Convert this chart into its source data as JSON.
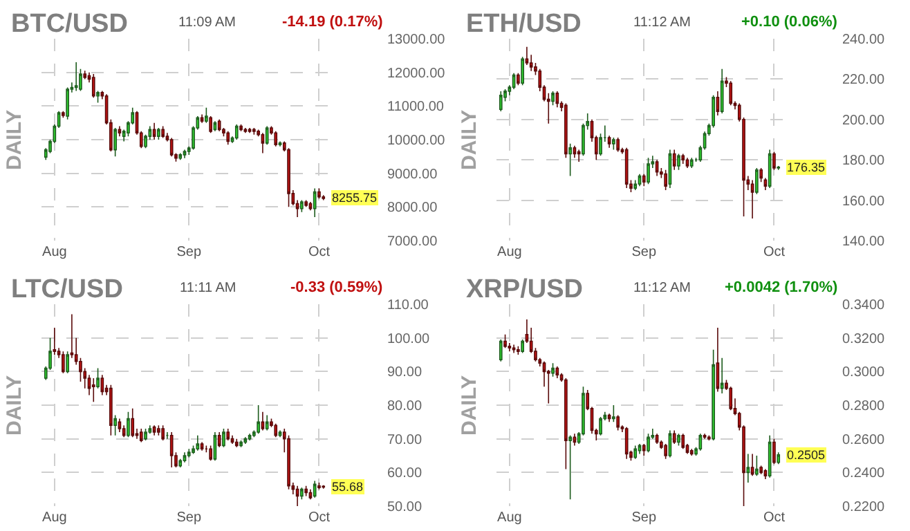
{
  "chart_data": [
    {
      "type": "candlestick",
      "title": "BTC/USD",
      "ylabel": "DAILY",
      "annotations": [
        "11:09 AM",
        "-14.19 (0.17%)",
        {
          "text": "8255.75",
          "y": 8255.75
        }
      ],
      "x": [
        "--07-30",
        "--07-31",
        "--08-01",
        "--08-02",
        "--08-03",
        "--08-04",
        "--08-05",
        "--08-06",
        "--08-07",
        "--08-08",
        "--08-09",
        "--08-10",
        "--08-11",
        "--08-12",
        "--08-13",
        "--08-14",
        "--08-15",
        "--08-16",
        "--08-17",
        "--08-18",
        "--08-19",
        "--08-20",
        "--08-21",
        "--08-22",
        "--08-23",
        "--08-24",
        "--08-25",
        "--08-26",
        "--08-27",
        "--08-28",
        "--08-29",
        "--08-30",
        "--08-31",
        "--09-01",
        "--09-02",
        "--09-03",
        "--09-04",
        "--09-05",
        "--09-06",
        "--09-07",
        "--09-08",
        "--09-09",
        "--09-10",
        "--09-11",
        "--09-12",
        "--09-13",
        "--09-14",
        "--09-15",
        "--09-16",
        "--09-17",
        "--09-18",
        "--09-19",
        "--09-20",
        "--09-21",
        "--09-22",
        "--09-23",
        "--09-24",
        "--09-25",
        "--09-26",
        "--09-27",
        "--09-28",
        "--09-29",
        "--09-30",
        "--10-01",
        "--10-02"
      ],
      "ohlc": [
        [
          9480,
          9750,
          9400,
          9700
        ],
        [
          9650,
          10000,
          9600,
          9950
        ],
        [
          9950,
          10450,
          9900,
          10400
        ],
        [
          10400,
          10850,
          10350,
          10800
        ],
        [
          10800,
          10850,
          10650,
          10720
        ],
        [
          10700,
          11550,
          10600,
          11500
        ],
        [
          11500,
          11700,
          11400,
          11550
        ],
        [
          11550,
          12300,
          11450,
          11600
        ],
        [
          11500,
          12100,
          11450,
          11950
        ],
        [
          11950,
          12050,
          11800,
          11850
        ],
        [
          11900,
          12000,
          11700,
          11800
        ],
        [
          11850,
          11950,
          11250,
          11300
        ],
        [
          11300,
          11450,
          11100,
          11400
        ],
        [
          11400,
          11450,
          11200,
          11300
        ],
        [
          11300,
          11350,
          10450,
          10500
        ],
        [
          10500,
          10600,
          9650,
          9700
        ],
        [
          9700,
          10350,
          9500,
          10300
        ],
        [
          10300,
          10400,
          10100,
          10200
        ],
        [
          10100,
          10300,
          9950,
          10250
        ],
        [
          10200,
          10550,
          10100,
          10500
        ],
        [
          10500,
          10950,
          10450,
          10800
        ],
        [
          10800,
          10850,
          10150,
          10200
        ],
        [
          10200,
          10250,
          9750,
          9800
        ],
        [
          9800,
          10150,
          9750,
          10100
        ],
        [
          10100,
          10400,
          10000,
          10300
        ],
        [
          10300,
          10500,
          10000,
          10100
        ],
        [
          10100,
          10350,
          10000,
          10300
        ],
        [
          10300,
          10400,
          10050,
          10100
        ],
        [
          10100,
          10200,
          9950,
          10000
        ],
        [
          10000,
          10050,
          9500,
          9550
        ],
        [
          9550,
          9600,
          9350,
          9450
        ],
        [
          9450,
          9600,
          9400,
          9550
        ],
        [
          9550,
          9700,
          9450,
          9650
        ],
        [
          9650,
          9800,
          9550,
          9750
        ],
        [
          9750,
          10400,
          9700,
          10350
        ],
        [
          10350,
          10700,
          10300,
          10650
        ],
        [
          10650,
          10750,
          10500,
          10550
        ],
        [
          10550,
          10950,
          10500,
          10700
        ],
        [
          10650,
          10700,
          10200,
          10250
        ],
        [
          10300,
          10550,
          10250,
          10500
        ],
        [
          10550,
          10600,
          10250,
          10300
        ],
        [
          10300,
          10350,
          10100,
          10200
        ],
        [
          10200,
          10250,
          9850,
          9950
        ],
        [
          9950,
          10100,
          9900,
          10050
        ],
        [
          10050,
          10450,
          10000,
          10400
        ],
        [
          10400,
          10450,
          10250,
          10300
        ],
        [
          10300,
          10350,
          10200,
          10250
        ],
        [
          10300,
          10350,
          10200,
          10250
        ],
        [
          10300,
          10350,
          10150,
          10250
        ],
        [
          10250,
          10300,
          10100,
          10150
        ],
        [
          10150,
          10200,
          9600,
          9900
        ],
        [
          9900,
          10400,
          9850,
          10350
        ],
        [
          10350,
          10400,
          10150,
          10200
        ],
        [
          10200,
          10250,
          9800,
          9850
        ],
        [
          9850,
          9950,
          9800,
          9900
        ],
        [
          9900,
          9950,
          9650,
          9700
        ],
        [
          9700,
          9750,
          8000,
          8400
        ],
        [
          8400,
          8500,
          8050,
          8100
        ],
        [
          8100,
          8200,
          7700,
          7950
        ],
        [
          7950,
          8200,
          7850,
          8150
        ],
        [
          8150,
          8200,
          8000,
          8050
        ],
        [
          8100,
          8150,
          7900,
          7950
        ],
        [
          7950,
          8550,
          7700,
          8450
        ],
        [
          8450,
          8550,
          8250,
          8300
        ],
        [
          8300,
          8350,
          8200,
          8255.75
        ]
      ],
      "xlim": [
        "--07-29",
        "--10-03"
      ],
      "xticks": [
        {
          "value": "--08-01",
          "label": "Aug"
        },
        {
          "value": "--09-01",
          "label": "Sep"
        },
        {
          "value": "--10-01",
          "label": "Oct"
        }
      ],
      "ylim": [
        7000,
        13000
      ],
      "yticks": [
        {
          "value": 7000,
          "label": "7000.00"
        },
        {
          "value": 8000,
          "label": "8000.00"
        },
        {
          "value": 9000,
          "label": "9000.00"
        },
        {
          "value": 10000,
          "label": "10000.00"
        },
        {
          "value": 11000,
          "label": "11000.00"
        },
        {
          "value": 12000,
          "label": "12000.00"
        },
        {
          "value": 13000,
          "label": "13000.00"
        }
      ],
      "grid": true
    },
    {
      "type": "candlestick",
      "title": "ETH/USD",
      "ylabel": "DAILY",
      "annotations": [
        "11:12 AM",
        "+0.10 (0.06%)",
        {
          "text": "176.35",
          "y": 176.35
        }
      ],
      "x": [
        "--07-30",
        "--07-31",
        "--08-01",
        "--08-02",
        "--08-03",
        "--08-04",
        "--08-05",
        "--08-06",
        "--08-07",
        "--08-08",
        "--08-09",
        "--08-10",
        "--08-11",
        "--08-12",
        "--08-13",
        "--08-14",
        "--08-15",
        "--08-16",
        "--08-17",
        "--08-18",
        "--08-19",
        "--08-20",
        "--08-21",
        "--08-22",
        "--08-23",
        "--08-24",
        "--08-25",
        "--08-26",
        "--08-27",
        "--08-28",
        "--08-29",
        "--08-30",
        "--08-31",
        "--09-01",
        "--09-02",
        "--09-03",
        "--09-04",
        "--09-05",
        "--09-06",
        "--09-07",
        "--09-08",
        "--09-09",
        "--09-10",
        "--09-11",
        "--09-12",
        "--09-13",
        "--09-14",
        "--09-15",
        "--09-16",
        "--09-17",
        "--09-18",
        "--09-19",
        "--09-20",
        "--09-21",
        "--09-22",
        "--09-23",
        "--09-24",
        "--09-25",
        "--09-26",
        "--09-27",
        "--09-28",
        "--09-29",
        "--09-30",
        "--10-01",
        "--10-02"
      ],
      "ohlc": [
        [
          205,
          214,
          204,
          212
        ],
        [
          211,
          215,
          209,
          214
        ],
        [
          214,
          217,
          212,
          216
        ],
        [
          216,
          223,
          215,
          222
        ],
        [
          222,
          223,
          217,
          218
        ],
        [
          218,
          231,
          217,
          230
        ],
        [
          230,
          236,
          227,
          228
        ],
        [
          228,
          232,
          224,
          226
        ],
        [
          226,
          228,
          222,
          224
        ],
        [
          224,
          225,
          214,
          216
        ],
        [
          216,
          217,
          209,
          210
        ],
        [
          210,
          213,
          198,
          209
        ],
        [
          209,
          214,
          207,
          213
        ],
        [
          213,
          214,
          206,
          208
        ],
        [
          208,
          209,
          204,
          206
        ],
        [
          207,
          208,
          181,
          183
        ],
        [
          183,
          188,
          172,
          186
        ],
        [
          186,
          187,
          181,
          183
        ],
        [
          184,
          185,
          179,
          183
        ],
        [
          183,
          198,
          182,
          197
        ],
        [
          197,
          203,
          195,
          199
        ],
        [
          199,
          200,
          189,
          191
        ],
        [
          191,
          192,
          180,
          183
        ],
        [
          183,
          193,
          182,
          191
        ],
        [
          191,
          197,
          189,
          191
        ],
        [
          191,
          192,
          186,
          188
        ],
        [
          188,
          191,
          185,
          190
        ],
        [
          190,
          191,
          184,
          185
        ],
        [
          185,
          186,
          183,
          184
        ],
        [
          185,
          186,
          166,
          168
        ],
        [
          168,
          170,
          164,
          166
        ],
        [
          166,
          170,
          165,
          168
        ],
        [
          168,
          173,
          167,
          172
        ],
        [
          172,
          173,
          167,
          169
        ],
        [
          169,
          181,
          168,
          178
        ],
        [
          178,
          182,
          176,
          179
        ],
        [
          179,
          180,
          172,
          174
        ],
        [
          174,
          176,
          171,
          173
        ],
        [
          173,
          175,
          165,
          167
        ],
        [
          168,
          185,
          166,
          183
        ],
        [
          183,
          185,
          175,
          177
        ],
        [
          177,
          183,
          175,
          182
        ],
        [
          182,
          183,
          178,
          180
        ],
        [
          180,
          181,
          176,
          177
        ],
        [
          177,
          181,
          176,
          180
        ],
        [
          180,
          181,
          179,
          180
        ],
        [
          180,
          187,
          179,
          186
        ],
        [
          186,
          194,
          185,
          193
        ],
        [
          193,
          198,
          192,
          197
        ],
        [
          197,
          212,
          196,
          211
        ],
        [
          211,
          214,
          202,
          204
        ],
        [
          204,
          225,
          203,
          219
        ],
        [
          219,
          221,
          216,
          218
        ],
        [
          218,
          219,
          207,
          208
        ],
        [
          208,
          209,
          205,
          207
        ],
        [
          207,
          208,
          199,
          200
        ],
        [
          200,
          201,
          152,
          170
        ],
        [
          170,
          172,
          165,
          168
        ],
        [
          168,
          170,
          151,
          164
        ],
        [
          164,
          176,
          163,
          175
        ],
        [
          175,
          176,
          169,
          171
        ],
        [
          170,
          171,
          165,
          167
        ],
        [
          167,
          185,
          166,
          183
        ],
        [
          183,
          184,
          175,
          176
        ],
        [
          176,
          177,
          175,
          176.35
        ]
      ],
      "xlim": [
        "--07-29",
        "--10-03"
      ],
      "xticks": [
        {
          "value": "--08-01",
          "label": "Aug"
        },
        {
          "value": "--09-01",
          "label": "Sep"
        },
        {
          "value": "--10-01",
          "label": "Oct"
        }
      ],
      "ylim": [
        140,
        240
      ],
      "yticks": [
        {
          "value": 140,
          "label": "140.00"
        },
        {
          "value": 160,
          "label": "160.00"
        },
        {
          "value": 180,
          "label": "180.00"
        },
        {
          "value": 200,
          "label": "200.00"
        },
        {
          "value": 220,
          "label": "220.00"
        },
        {
          "value": 240,
          "label": "240.00"
        }
      ],
      "grid": true
    },
    {
      "type": "candlestick",
      "title": "LTC/USD",
      "ylabel": "DAILY",
      "annotations": [
        "11:11 AM",
        "-0.33 (0.59%)",
        {
          "text": "55.68",
          "y": 55.68
        }
      ],
      "x": [
        "--07-30",
        "--07-31",
        "--08-01",
        "--08-02",
        "--08-03",
        "--08-04",
        "--08-05",
        "--08-06",
        "--08-07",
        "--08-08",
        "--08-09",
        "--08-10",
        "--08-11",
        "--08-12",
        "--08-13",
        "--08-14",
        "--08-15",
        "--08-16",
        "--08-17",
        "--08-18",
        "--08-19",
        "--08-20",
        "--08-21",
        "--08-22",
        "--08-23",
        "--08-24",
        "--08-25",
        "--08-26",
        "--08-27",
        "--08-28",
        "--08-29",
        "--08-30",
        "--08-31",
        "--09-01",
        "--09-02",
        "--09-03",
        "--09-04",
        "--09-05",
        "--09-06",
        "--09-07",
        "--09-08",
        "--09-09",
        "--09-10",
        "--09-11",
        "--09-12",
        "--09-13",
        "--09-14",
        "--09-15",
        "--09-16",
        "--09-17",
        "--09-18",
        "--09-19",
        "--09-20",
        "--09-21",
        "--09-22",
        "--09-23",
        "--09-24",
        "--09-25",
        "--09-26",
        "--09-27",
        "--09-28",
        "--09-29",
        "--09-30",
        "--10-01",
        "--10-02"
      ],
      "ohlc": [
        [
          88,
          91.5,
          87.5,
          91
        ],
        [
          91,
          100,
          90.5,
          96
        ],
        [
          96.5,
          103,
          95,
          96
        ],
        [
          96,
          97,
          94,
          95
        ],
        [
          95,
          96,
          89.5,
          90
        ],
        [
          90,
          96,
          89.5,
          95
        ],
        [
          95.5,
          107,
          94,
          95
        ],
        [
          95,
          100,
          92,
          93
        ],
        [
          93,
          94,
          87,
          90
        ],
        [
          90,
          91,
          85,
          88
        ],
        [
          88,
          89,
          83,
          85
        ],
        [
          86,
          88,
          81,
          85.5
        ],
        [
          85.5,
          91,
          85,
          88
        ],
        [
          88,
          89,
          83,
          84
        ],
        [
          85,
          86,
          83,
          84
        ],
        [
          85,
          86,
          71,
          74
        ],
        [
          74,
          77,
          71,
          76
        ],
        [
          75,
          76,
          72,
          73
        ],
        [
          73,
          74,
          70.5,
          71
        ],
        [
          71,
          78,
          70.5,
          76
        ],
        [
          76,
          79,
          70.5,
          71
        ],
        [
          71.5,
          73,
          70,
          71
        ],
        [
          72,
          73,
          69,
          69.5
        ],
        [
          70,
          73,
          69.5,
          72
        ],
        [
          72,
          74,
          71.5,
          73
        ],
        [
          73.5,
          74,
          71,
          72
        ],
        [
          73,
          74,
          71,
          72
        ],
        [
          73,
          74,
          69.5,
          70
        ],
        [
          71,
          72,
          70,
          71
        ],
        [
          71,
          72,
          61.5,
          65
        ],
        [
          65,
          66,
          61.5,
          62
        ],
        [
          62,
          64,
          61.5,
          63.5
        ],
        [
          63.5,
          66,
          63,
          65
        ],
        [
          65,
          67,
          64.5,
          66
        ],
        [
          66,
          68,
          65.5,
          67
        ],
        [
          67,
          71,
          66.5,
          68.5
        ],
        [
          68.5,
          69,
          66.5,
          67
        ],
        [
          67,
          68,
          66,
          67
        ],
        [
          67,
          68,
          63.5,
          64
        ],
        [
          64,
          72,
          63.5,
          71
        ],
        [
          71,
          72,
          67.5,
          68
        ],
        [
          68,
          73,
          67.5,
          72
        ],
        [
          72,
          73,
          69.5,
          70
        ],
        [
          70,
          71,
          68.5,
          69
        ],
        [
          69,
          70,
          67.5,
          68
        ],
        [
          68,
          69.5,
          67.5,
          69
        ],
        [
          69,
          70.5,
          68.5,
          70
        ],
        [
          70,
          71.5,
          69.5,
          71
        ],
        [
          71,
          72.5,
          70.5,
          72
        ],
        [
          72,
          80,
          71.5,
          75
        ],
        [
          75,
          78,
          72.5,
          73
        ],
        [
          73,
          77,
          72.5,
          75
        ],
        [
          75,
          76,
          73.5,
          74
        ],
        [
          74,
          74.5,
          70.5,
          71
        ],
        [
          71,
          72.5,
          70.5,
          72
        ],
        [
          72,
          73,
          66,
          70
        ],
        [
          70,
          71,
          55,
          56
        ],
        [
          56,
          57,
          53.5,
          55
        ],
        [
          55,
          56,
          50,
          53
        ],
        [
          53,
          55.5,
          52,
          55
        ],
        [
          55,
          56,
          53,
          54
        ],
        [
          54,
          55,
          52,
          52.5
        ],
        [
          53,
          57.5,
          52.5,
          56.5
        ],
        [
          56,
          57,
          55,
          55.5
        ],
        [
          55.9,
          56.2,
          55.2,
          55.68
        ]
      ],
      "xlim": [
        "--07-29",
        "--10-03"
      ],
      "xticks": [
        {
          "value": "--08-01",
          "label": "Aug"
        },
        {
          "value": "--09-01",
          "label": "Sep"
        },
        {
          "value": "--10-01",
          "label": "Oct"
        }
      ],
      "ylim": [
        50,
        110
      ],
      "yticks": [
        {
          "value": 50,
          "label": "50.00"
        },
        {
          "value": 60,
          "label": "60.00"
        },
        {
          "value": 70,
          "label": "70.00"
        },
        {
          "value": 80,
          "label": "80.00"
        },
        {
          "value": 90,
          "label": "90.00"
        },
        {
          "value": 100,
          "label": "100.00"
        },
        {
          "value": 110,
          "label": "110.00"
        }
      ],
      "grid": true
    },
    {
      "type": "candlestick",
      "title": "XRP/USD",
      "ylabel": "DAILY",
      "annotations": [
        "11:12 AM",
        "+0.0042 (1.70%)",
        {
          "text": "0.2505",
          "y": 0.2505
        }
      ],
      "x": [
        "--07-30",
        "--07-31",
        "--08-01",
        "--08-02",
        "--08-03",
        "--08-04",
        "--08-05",
        "--08-06",
        "--08-07",
        "--08-08",
        "--08-09",
        "--08-10",
        "--08-11",
        "--08-12",
        "--08-13",
        "--08-14",
        "--08-15",
        "--08-16",
        "--08-17",
        "--08-18",
        "--08-19",
        "--08-20",
        "--08-21",
        "--08-22",
        "--08-23",
        "--08-24",
        "--08-25",
        "--08-26",
        "--08-27",
        "--08-28",
        "--08-29",
        "--08-30",
        "--08-31",
        "--09-01",
        "--09-02",
        "--09-03",
        "--09-04",
        "--09-05",
        "--09-06",
        "--09-07",
        "--09-08",
        "--09-09",
        "--09-10",
        "--09-11",
        "--09-12",
        "--09-13",
        "--09-14",
        "--09-15",
        "--09-16",
        "--09-17",
        "--09-18",
        "--09-19",
        "--09-20",
        "--09-21",
        "--09-22",
        "--09-23",
        "--09-24",
        "--09-25",
        "--09-26",
        "--09-27",
        "--09-28",
        "--09-29",
        "--09-30",
        "--10-01",
        "--10-02"
      ],
      "ohlc": [
        [
          0.307,
          0.319,
          0.306,
          0.318
        ],
        [
          0.318,
          0.322,
          0.314,
          0.315
        ],
        [
          0.315,
          0.317,
          0.312,
          0.314
        ],
        [
          0.314,
          0.316,
          0.311,
          0.313
        ],
        [
          0.313,
          0.315,
          0.31,
          0.312
        ],
        [
          0.312,
          0.319,
          0.311,
          0.318
        ],
        [
          0.322,
          0.331,
          0.317,
          0.318
        ],
        [
          0.318,
          0.326,
          0.311,
          0.312
        ],
        [
          0.312,
          0.314,
          0.306,
          0.307
        ],
        [
          0.307,
          0.308,
          0.303,
          0.305
        ],
        [
          0.305,
          0.306,
          0.291,
          0.3
        ],
        [
          0.3,
          0.301,
          0.281,
          0.299
        ],
        [
          0.299,
          0.305,
          0.297,
          0.302
        ],
        [
          0.302,
          0.303,
          0.296,
          0.298
        ],
        [
          0.298,
          0.299,
          0.294,
          0.295
        ],
        [
          0.295,
          0.296,
          0.242,
          0.259
        ],
        [
          0.259,
          0.262,
          0.224,
          0.261
        ],
        [
          0.261,
          0.263,
          0.256,
          0.258
        ],
        [
          0.258,
          0.264,
          0.257,
          0.263
        ],
        [
          0.263,
          0.291,
          0.262,
          0.287
        ],
        [
          0.287,
          0.289,
          0.277,
          0.278
        ],
        [
          0.278,
          0.279,
          0.263,
          0.265
        ],
        [
          0.265,
          0.266,
          0.259,
          0.263
        ],
        [
          0.263,
          0.273,
          0.262,
          0.272
        ],
        [
          0.272,
          0.276,
          0.271,
          0.274
        ],
        [
          0.274,
          0.275,
          0.27,
          0.272
        ],
        [
          0.272,
          0.28,
          0.27,
          0.273
        ],
        [
          0.273,
          0.274,
          0.265,
          0.267
        ],
        [
          0.267,
          0.268,
          0.264,
          0.266
        ],
        [
          0.266,
          0.267,
          0.248,
          0.251
        ],
        [
          0.252,
          0.253,
          0.247,
          0.249
        ],
        [
          0.249,
          0.256,
          0.248,
          0.254
        ],
        [
          0.253,
          0.257,
          0.251,
          0.256
        ],
        [
          0.256,
          0.257,
          0.25,
          0.253
        ],
        [
          0.253,
          0.263,
          0.252,
          0.261
        ],
        [
          0.261,
          0.266,
          0.26,
          0.262
        ],
        [
          0.262,
          0.263,
          0.257,
          0.258
        ],
        [
          0.258,
          0.259,
          0.254,
          0.255
        ],
        [
          0.256,
          0.257,
          0.248,
          0.25
        ],
        [
          0.25,
          0.265,
          0.249,
          0.263
        ],
        [
          0.263,
          0.265,
          0.257,
          0.258
        ],
        [
          0.258,
          0.263,
          0.256,
          0.262
        ],
        [
          0.262,
          0.263,
          0.254,
          0.255
        ],
        [
          0.256,
          0.257,
          0.251,
          0.252
        ],
        [
          0.253,
          0.254,
          0.25,
          0.251
        ],
        [
          0.251,
          0.255,
          0.25,
          0.254
        ],
        [
          0.254,
          0.263,
          0.253,
          0.262
        ],
        [
          0.262,
          0.263,
          0.26,
          0.261
        ],
        [
          0.261,
          0.262,
          0.259,
          0.26
        ],
        [
          0.26,
          0.313,
          0.259,
          0.304
        ],
        [
          0.305,
          0.326,
          0.288,
          0.29
        ],
        [
          0.29,
          0.308,
          0.287,
          0.293
        ],
        [
          0.293,
          0.295,
          0.289,
          0.29
        ],
        [
          0.29,
          0.291,
          0.277,
          0.278
        ],
        [
          0.278,
          0.284,
          0.274,
          0.275
        ],
        [
          0.275,
          0.276,
          0.265,
          0.267
        ],
        [
          0.267,
          0.268,
          0.22,
          0.24
        ],
        [
          0.24,
          0.251,
          0.234,
          0.243
        ],
        [
          0.243,
          0.251,
          0.238,
          0.239
        ],
        [
          0.239,
          0.25,
          0.238,
          0.242
        ],
        [
          0.243,
          0.244,
          0.239,
          0.24
        ],
        [
          0.241,
          0.242,
          0.236,
          0.238
        ],
        [
          0.238,
          0.262,
          0.237,
          0.258
        ],
        [
          0.258,
          0.26,
          0.245,
          0.246
        ],
        [
          0.246,
          0.252,
          0.245,
          0.2505
        ]
      ],
      "xlim": [
        "--07-29",
        "--10-03"
      ],
      "xticks": [
        {
          "value": "--08-01",
          "label": "Aug"
        },
        {
          "value": "--09-01",
          "label": "Sep"
        },
        {
          "value": "--10-01",
          "label": "Oct"
        }
      ],
      "ylim": [
        0.22,
        0.34
      ],
      "yticks": [
        {
          "value": 0.22,
          "label": "0.2200"
        },
        {
          "value": 0.24,
          "label": "0.2400"
        },
        {
          "value": 0.26,
          "label": "0.2600"
        },
        {
          "value": 0.28,
          "label": "0.2800"
        },
        {
          "value": 0.3,
          "label": "0.3000"
        },
        {
          "value": 0.32,
          "label": "0.3200"
        },
        {
          "value": 0.34,
          "label": "0.3400"
        }
      ],
      "grid": true
    }
  ]
}
